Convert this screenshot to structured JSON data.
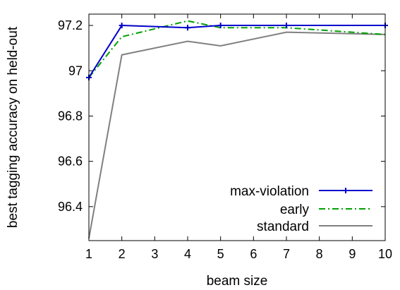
{
  "chart_data": {
    "type": "line",
    "title": "",
    "xlabel": "beam size",
    "ylabel": "best tagging accuracy on held-out",
    "xlim": [
      1,
      10
    ],
    "ylim": [
      96.25,
      97.25
    ],
    "x_ticks": [
      "1",
      "2",
      "3",
      "4",
      "5",
      "6",
      "7",
      "8",
      "9",
      "10"
    ],
    "y_ticks": [
      "96.4",
      "96.6",
      "96.8",
      "97",
      "97.2"
    ],
    "legend_position": "bottom-right",
    "grid": false,
    "series": [
      {
        "name": "max-violation",
        "color": "#0000cc",
        "style": "solid-with-plus-markers",
        "x": [
          1,
          2,
          4,
          5,
          7,
          10
        ],
        "y": [
          96.97,
          97.2,
          97.19,
          97.2,
          97.2,
          97.2
        ]
      },
      {
        "name": "early",
        "color": "#00a000",
        "style": "dash-dot",
        "x": [
          1,
          2,
          4,
          5,
          7,
          10
        ],
        "y": [
          96.97,
          97.15,
          97.22,
          97.19,
          97.19,
          97.16
        ]
      },
      {
        "name": "standard",
        "color": "#808080",
        "style": "solid",
        "x": [
          1,
          2,
          4,
          5,
          7,
          10
        ],
        "y": [
          96.26,
          97.07,
          97.13,
          97.11,
          97.17,
          97.16
        ]
      }
    ]
  }
}
